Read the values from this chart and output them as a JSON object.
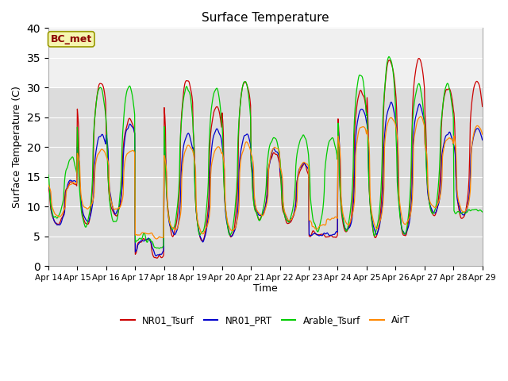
{
  "title": "Surface Temperature",
  "ylabel": "Surface Temperature (C)",
  "xlabel": "Time",
  "ylim": [
    0,
    40
  ],
  "plot_bg_lower": "#dcdcdc",
  "plot_bg_upper": "#f0f0f0",
  "fig_bg": "#ffffff",
  "annotation": "BC_met",
  "legend_labels": [
    "NR01_Tsurf",
    "NR01_PRT",
    "Arable_Tsurf",
    "AirT"
  ],
  "line_colors": [
    "#cc0000",
    "#0000cc",
    "#00cc00",
    "#ff8800"
  ],
  "xtick_labels": [
    "Apr 14",
    "Apr 15",
    "Apr 16",
    "Apr 17",
    "Apr 18",
    "Apr 19",
    "Apr 20",
    "Apr 21",
    "Apr 22",
    "Apr 23",
    "Apr 24",
    "Apr 25",
    "Apr 26",
    "Apr 27",
    "Apr 28",
    "Apr 29"
  ],
  "grid_color": "#ffffff",
  "yticks": [
    0,
    5,
    10,
    15,
    20,
    25,
    30,
    35,
    40
  ],
  "n_days": 15,
  "figsize": [
    6.4,
    4.8
  ],
  "dpi": 100
}
